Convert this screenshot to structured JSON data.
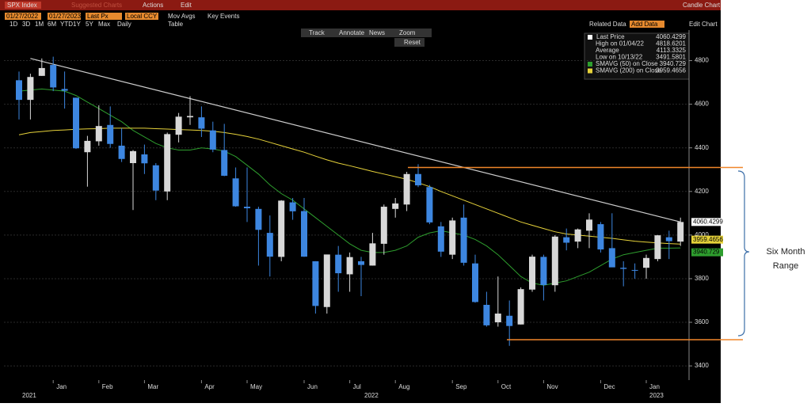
{
  "toolbar": {
    "ticker": "SPX Index",
    "suggested": "Suggested Charts",
    "actions": "Actions",
    "edit": "Edit",
    "chart_kind": "Candle Chart",
    "start_date": "01/27/2022",
    "end_date": "01/27/2023",
    "price_field": "Last Px",
    "currency": "Local CCY",
    "mov_avgs": "Mov Avgs",
    "key_events": "Key Events",
    "periods": [
      "1D",
      "3D",
      "1M",
      "6M",
      "YTD",
      "1Y",
      "5Y",
      "Max"
    ],
    "frequency": "Daily",
    "table": "Table",
    "related_data": "Related Data",
    "add_data": "Add Data",
    "edit_chart": "Edit Chart",
    "tools": [
      "Track",
      "Annotate",
      "News",
      "Zoom"
    ],
    "reset": "Reset"
  },
  "chart_data": {
    "type": "candlestick",
    "categories": [
      null,
      null,
      null,
      "Jan",
      null,
      null,
      null,
      "Feb",
      null,
      null,
      null,
      "Mar",
      null,
      null,
      null,
      null,
      "Apr",
      null,
      null,
      null,
      "May",
      null,
      null,
      null,
      null,
      "Jun",
      null,
      null,
      null,
      "Jul",
      null,
      null,
      null,
      "Aug",
      null,
      null,
      null,
      null,
      "Sep",
      null,
      null,
      null,
      "Oct",
      null,
      null,
      null,
      "Nov",
      null,
      null,
      null,
      null,
      "Dec",
      null,
      null,
      null,
      "Jan",
      null,
      null,
      null
    ],
    "year_labels": [
      {
        "index": 0,
        "label": "2021"
      },
      {
        "index": 30,
        "label": "2022"
      },
      {
        "index": 55,
        "label": "2023"
      }
    ],
    "open": [
      4710,
      4620,
      4730,
      4780,
      4670,
      4630,
      4380,
      4430,
      4505,
      4410,
      4330,
      4370,
      4320,
      4200,
      4460,
      4540,
      4540,
      4480,
      4390,
      4260,
      4130,
      4120,
      4010,
      3900,
      4150,
      4110,
      3880,
      3670,
      3910,
      3820,
      3880,
      3860,
      3960,
      4120,
      4140,
      4280,
      4220,
      4040,
      3910,
      4080,
      3870,
      3680,
      3600,
      3630,
      3590,
      3750,
      3900,
      3770,
      3990,
      3970,
      4020,
      4050,
      3940,
      3850,
      3840,
      3850,
      3890,
      3990,
      3970
    ],
    "high": [
      4750,
      4740,
      4810,
      4818,
      4750,
      4630,
      4455,
      4595,
      4590,
      4490,
      4390,
      4415,
      4330,
      4470,
      4560,
      4637,
      4590,
      4520,
      4510,
      4310,
      4310,
      4130,
      4090,
      4160,
      4170,
      4170,
      3880,
      3910,
      3950,
      3920,
      3900,
      4010,
      4140,
      4170,
      4290,
      4325,
      4230,
      4060,
      4080,
      4140,
      3910,
      3740,
      3810,
      3700,
      3760,
      3910,
      3910,
      4000,
      4030,
      4030,
      4100,
      4060,
      4100,
      3880,
      3870,
      3910,
      4000,
      4020,
      4080
    ],
    "low": [
      4530,
      4530,
      4730,
      4660,
      4580,
      4395,
      4222,
      4410,
      4400,
      4335,
      4115,
      4280,
      4160,
      4160,
      4425,
      4505,
      4450,
      4380,
      4270,
      4130,
      4060,
      3860,
      3810,
      3880,
      4070,
      3900,
      3640,
      3640,
      3740,
      3740,
      3720,
      3860,
      3910,
      4080,
      4110,
      4220,
      4050,
      3900,
      3890,
      3860,
      3690,
      3580,
      3580,
      3492,
      3590,
      3740,
      3700,
      3740,
      3930,
      3940,
      3940,
      3920,
      3860,
      3765,
      3800,
      3800,
      3880,
      3890,
      3950
    ],
    "close": [
      4620,
      4725,
      4766,
      4677,
      4662,
      4398,
      4432,
      4500,
      4418,
      4349,
      4385,
      4329,
      4204,
      4463,
      4543,
      4546,
      4488,
      4392,
      4272,
      4132,
      4123,
      4024,
      3901,
      4158,
      4109,
      3901,
      3675,
      3911,
      3825,
      3899,
      3863,
      3962,
      4130,
      4145,
      4280,
      4228,
      4058,
      3924,
      4067,
      3873,
      3693,
      3586,
      3640,
      3583,
      3752,
      3901,
      3771,
      3993,
      3965,
      4026,
      4071,
      3934,
      3852,
      3845,
      3839,
      3895,
      3999,
      3972,
      4060
    ],
    "up_color": "#d8d8d8",
    "down_color": "#3d86e0",
    "series": [
      {
        "name": "SMAVG (50)  on Close",
        "color": "#2e9e2e",
        "value": "3940.729",
        "values": [
          4660,
          4665,
          4670,
          4665,
          4660,
          4640,
          4610,
          4580,
          4550,
          4520,
          4480,
          4450,
          4420,
          4400,
          4390,
          4390,
          4400,
          4395,
          4385,
          4360,
          4320,
          4280,
          4230,
          4190,
          4160,
          4120,
          4080,
          4040,
          4000,
          3960,
          3930,
          3920,
          3920,
          3930,
          3950,
          3990,
          4010,
          4020,
          4010,
          4000,
          3980,
          3950,
          3910,
          3860,
          3810,
          3780,
          3770,
          3780,
          3790,
          3810,
          3830,
          3860,
          3890,
          3910,
          3920,
          3930,
          3940,
          3940,
          3941
        ]
      },
      {
        "name": "SMAVG (200)  on Close",
        "color": "#e6d23a",
        "value": "3959.4656",
        "values": [
          4460,
          4470,
          4475,
          4480,
          4482,
          4485,
          4487,
          4488,
          4490,
          4490,
          4490,
          4490,
          4488,
          4486,
          4484,
          4482,
          4480,
          4476,
          4470,
          4462,
          4452,
          4440,
          4425,
          4410,
          4395,
          4380,
          4362,
          4345,
          4330,
          4318,
          4305,
          4292,
          4280,
          4268,
          4256,
          4240,
          4222,
          4200,
          4180,
          4160,
          4140,
          4120,
          4100,
          4080,
          4060,
          4045,
          4030,
          4015,
          4005,
          4000,
          3995,
          3990,
          3985,
          3978,
          3972,
          3968,
          3964,
          3961,
          3959
        ]
      }
    ],
    "legend": [
      {
        "name": "Last Price",
        "value": "4060.4299"
      },
      {
        "name": "High on 01/04/22",
        "value": "4818.6201"
      },
      {
        "name": "Average",
        "value": "4113.3325"
      },
      {
        "name": "Low on 10/13/22",
        "value": "3491.5801"
      }
    ],
    "last_tag": "4060.4299",
    "trendline": [
      4810,
      4060
    ],
    "range_lines": [
      4310,
      3520
    ],
    "annotation": [
      "Six Month",
      "Range"
    ],
    "ylim": [
      3335,
      4940
    ],
    "yticks": [
      3400,
      3600,
      3800,
      4000,
      4200,
      4400,
      4600,
      4800
    ]
  }
}
